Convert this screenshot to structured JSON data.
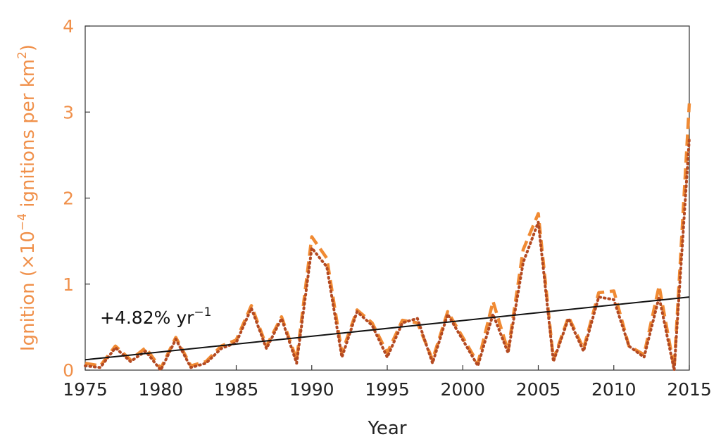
{
  "chart_data": {
    "type": "line",
    "xlabel": "Year",
    "ylabel": {
      "prefix": "Ignition (×10",
      "exp1": "−4",
      "middle": " ignitions per km",
      "exp2": "2",
      "suffix": ")"
    },
    "xlim": [
      1975,
      2015
    ],
    "ylim": [
      0,
      4
    ],
    "xticks": [
      "1975",
      "1980",
      "1985",
      "1990",
      "1995",
      "2000",
      "2005",
      "2010",
      "2015"
    ],
    "yticks": [
      "0",
      "1",
      "2",
      "3",
      "4"
    ],
    "annotation": {
      "text": "+4.82% yr",
      "superscript": "−1"
    },
    "colors": {
      "axis_label": "#f0904a",
      "series_dashed": "#f08a33",
      "series_dotted": "#b44a22",
      "trend": "#111111"
    },
    "series": [
      {
        "style": "dashed",
        "x": [
          1975,
          1976,
          1977,
          1978,
          1979,
          1980,
          1981,
          1982,
          1983,
          1984,
          1985,
          1986,
          1987,
          1988,
          1989,
          1990,
          1991,
          1992,
          1993,
          1994,
          1995,
          1996,
          1997,
          1998,
          1999,
          2000,
          2001,
          2002,
          2003,
          2004,
          2005,
          2006,
          2007,
          2008,
          2009,
          2010,
          2011,
          2012,
          2013,
          2014,
          2015
        ],
        "y": [
          0.08,
          0.05,
          0.28,
          0.12,
          0.26,
          0.02,
          0.38,
          0.05,
          0.1,
          0.28,
          0.35,
          0.75,
          0.28,
          0.62,
          0.12,
          1.55,
          1.3,
          0.2,
          0.7,
          0.55,
          0.2,
          0.58,
          0.55,
          0.12,
          0.68,
          0.38,
          0.08,
          0.8,
          0.22,
          1.4,
          1.82,
          0.12,
          0.62,
          0.25,
          0.9,
          0.92,
          0.28,
          0.18,
          0.98,
          0.02,
          3.1
        ]
      },
      {
        "style": "dotted",
        "x": [
          1975,
          1976,
          1977,
          1978,
          1979,
          1980,
          1981,
          1982,
          1983,
          1984,
          1985,
          1986,
          1987,
          1988,
          1989,
          1990,
          1991,
          1992,
          1993,
          1994,
          1995,
          1996,
          1997,
          1998,
          1999,
          2000,
          2001,
          2002,
          2003,
          2004,
          2005,
          2006,
          2007,
          2008,
          2009,
          2010,
          2011,
          2012,
          2013,
          2014,
          2015
        ],
        "y": [
          0.05,
          0.03,
          0.26,
          0.1,
          0.22,
          0.0,
          0.36,
          0.03,
          0.08,
          0.25,
          0.32,
          0.72,
          0.25,
          0.6,
          0.08,
          1.42,
          1.2,
          0.15,
          0.68,
          0.52,
          0.15,
          0.55,
          0.6,
          0.08,
          0.65,
          0.35,
          0.05,
          0.65,
          0.2,
          1.25,
          1.72,
          0.1,
          0.6,
          0.22,
          0.85,
          0.82,
          0.28,
          0.15,
          0.85,
          0.0,
          2.7
        ]
      },
      {
        "style": "trend",
        "x": [
          1975,
          2015
        ],
        "y": [
          0.12,
          0.85
        ]
      }
    ]
  }
}
